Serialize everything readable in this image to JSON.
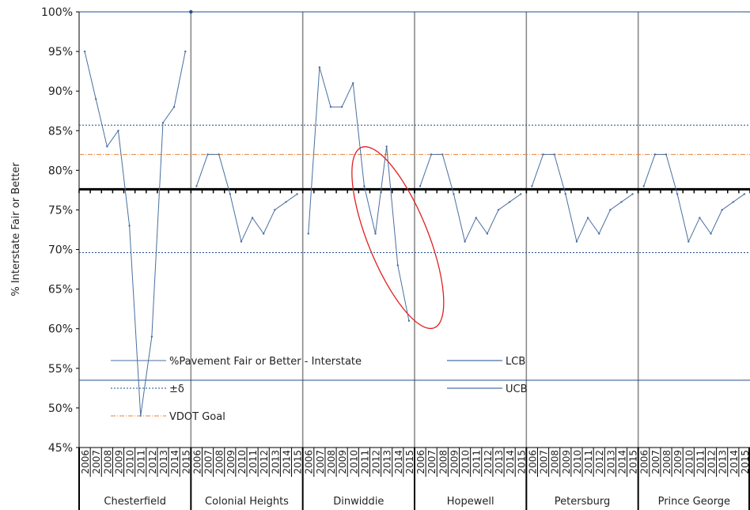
{
  "chart_data": {
    "type": "line",
    "ylabel": "% Interstate Fair or Better",
    "ylim": [
      45,
      100
    ],
    "yticks": [
      "45%",
      "50%",
      "55%",
      "60%",
      "65%",
      "70%",
      "75%",
      "80%",
      "85%",
      "90%",
      "95%",
      "100%"
    ],
    "ytick_values": [
      45,
      50,
      55,
      60,
      65,
      70,
      75,
      80,
      85,
      90,
      95,
      100
    ],
    "years": [
      "2006",
      "2007",
      "2008",
      "2009",
      "2010",
      "2011",
      "2012",
      "2013",
      "2014",
      "2015"
    ],
    "groups": [
      "Chesterfield",
      "Colonial Heights",
      "Dinwiddie",
      "Hopewell",
      "Petersburg",
      "Prince George"
    ],
    "grid": false,
    "series": [
      {
        "name": "%Pavement Fair or Better - Interstate",
        "color": "#4a6fa0",
        "style": "solid",
        "values": [
          [
            95,
            89,
            83,
            85,
            73,
            49,
            59,
            86,
            88,
            95
          ],
          [
            78,
            82,
            82,
            77,
            71,
            74,
            72,
            75,
            76,
            77
          ],
          [
            72,
            93,
            88,
            88,
            91,
            78,
            72,
            83,
            68,
            61
          ],
          [
            78,
            82,
            82,
            77,
            71,
            74,
            72,
            75,
            76,
            77
          ],
          [
            78,
            82,
            82,
            77,
            71,
            74,
            72,
            75,
            76,
            77
          ],
          [
            78,
            82,
            82,
            77,
            71,
            74,
            72,
            75,
            76,
            77
          ]
        ]
      },
      {
        "name": "LCB",
        "color": "#1f4e8c",
        "style": "solid",
        "constant": 53.5
      },
      {
        "name": "±δ",
        "color": "#1f4e8c",
        "style": "dotted",
        "constant_pair": [
          69.6,
          85.7
        ]
      },
      {
        "name": "UCB",
        "color": "#1f4e8c",
        "style": "solid",
        "constant": 100
      },
      {
        "name": "VDOT Goal",
        "color": "#e8833a",
        "style": "dash-dot",
        "constant": 82
      },
      {
        "name": "",
        "color": "#000000",
        "style": "bold",
        "constant": 77.6
      }
    ],
    "legend": {
      "placement": "bottom-left",
      "entries": [
        {
          "label": "%Pavement Fair or Better - Interstate",
          "series": 0
        },
        {
          "label": "LCB",
          "series": 1
        },
        {
          "label": "±δ",
          "series": 2
        },
        {
          "label": "UCB",
          "series": 3
        },
        {
          "label": "VDOT Goal",
          "series": 4
        }
      ]
    },
    "annotations": [
      {
        "type": "ellipse",
        "color": "#e02020",
        "group": "Dinwiddie",
        "note": ""
      }
    ]
  }
}
